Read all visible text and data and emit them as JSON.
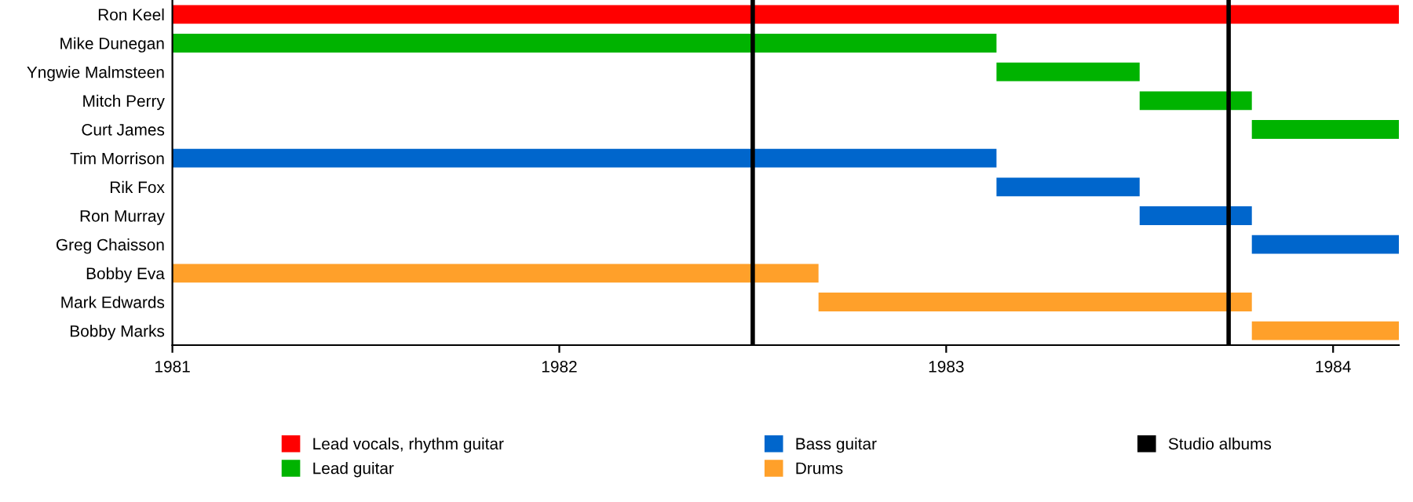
{
  "chart_data": {
    "type": "bar",
    "orientation": "horizontal",
    "legend": "bottom",
    "grid": false,
    "categories": [
      "Ron Keel",
      "Mike Dunegan",
      "Yngwie Malmsteen",
      "Mitch Perry",
      "Curt James",
      "Tim Morrison",
      "Rik Fox",
      "Ron Murray",
      "Greg Chaisson",
      "Bobby Eva",
      "Mark Edwards",
      "Bobby Marks"
    ],
    "xlim": [
      1981,
      1984.17
    ],
    "xticks": [
      1981,
      1982,
      1983,
      1984
    ],
    "series": [
      {
        "name": "Lead vocals, rhythm guitar",
        "color": "#ff0000",
        "values": [
          3.17,
          null,
          null,
          null,
          null,
          null,
          null,
          null,
          null,
          null,
          null,
          null
        ],
        "base": [
          1981,
          null,
          null,
          null,
          null,
          null,
          null,
          null,
          null,
          null,
          null,
          null
        ]
      },
      {
        "name": "Lead guitar",
        "color": "#00b300",
        "values": [
          null,
          2.13,
          0.37,
          0.29,
          0.38,
          null,
          null,
          null,
          null,
          null,
          null,
          null
        ],
        "base": [
          null,
          1981,
          1983.13,
          1983.5,
          1983.79,
          null,
          null,
          null,
          null,
          null,
          null,
          null
        ]
      },
      {
        "name": "Bass guitar",
        "color": "#0066cc",
        "values": [
          null,
          null,
          null,
          null,
          null,
          2.13,
          0.37,
          0.29,
          0.38,
          null,
          null,
          null
        ],
        "base": [
          null,
          null,
          null,
          null,
          null,
          1981,
          1983.13,
          1983.5,
          1983.79,
          null,
          null,
          null
        ]
      },
      {
        "name": "Drums",
        "color": "#ffa02a",
        "values": [
          null,
          null,
          null,
          null,
          null,
          null,
          null,
          null,
          null,
          1.67,
          1.12,
          0.38
        ],
        "base": [
          null,
          null,
          null,
          null,
          null,
          null,
          null,
          null,
          null,
          1981,
          1982.67,
          1983.79
        ]
      }
    ],
    "ref_lines": [
      {
        "axis": "x",
        "value": 1982.5,
        "label": "Studio albums",
        "color": "#000000"
      },
      {
        "axis": "x",
        "value": 1983.73,
        "color": "#000000"
      }
    ]
  }
}
